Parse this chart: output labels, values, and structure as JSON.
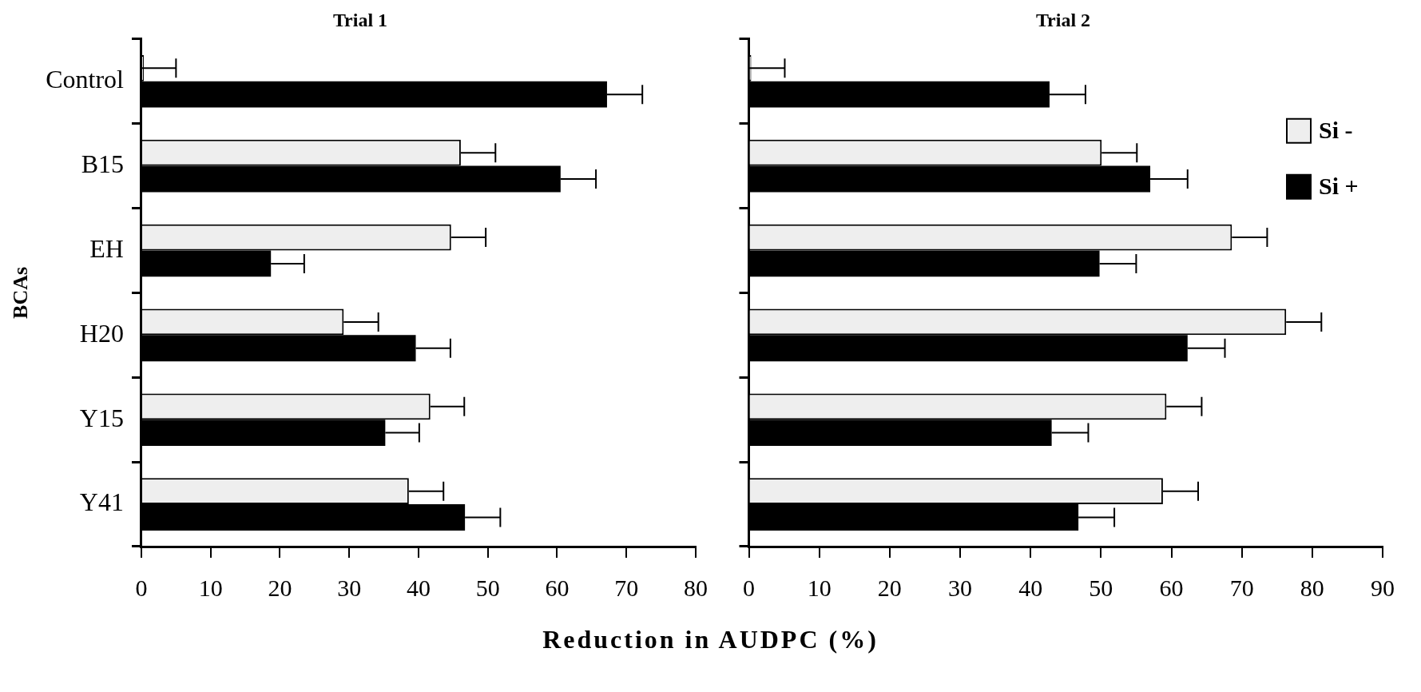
{
  "chart_data": [
    {
      "type": "bar",
      "orientation": "horizontal",
      "title": "Trial 1",
      "xlabel": "Reduction in AUDPC (%)",
      "ylabel": "BCAs",
      "categories": [
        "Control",
        "B15",
        "EH",
        "H20",
        "Y15",
        "Y41"
      ],
      "series": [
        {
          "color": "#eeeeee",
          "values": [
            0,
            46.1,
            44.7,
            29.2,
            41.7,
            38.6
          ],
          "errors": [
            [
              0,
              5
            ],
            [
              46.1,
              51.1
            ],
            [
              44.7,
              49.7
            ],
            [
              29.2,
              34.2
            ],
            [
              41.7,
              46.6
            ],
            [
              38.6,
              43.6
            ]
          ]
        },
        {
          "color": "#000000",
          "values": [
            67.2,
            60.5,
            18.7,
            39.6,
            35.2,
            46.7
          ],
          "errors": [
            [
              67.2,
              72.3
            ],
            [
              60.5,
              65.6
            ],
            [
              18.7,
              23.5
            ],
            [
              39.6,
              44.6
            ],
            [
              35.2,
              40.1
            ],
            [
              46.7,
              51.8
            ]
          ]
        }
      ],
      "xlim": [
        0,
        80
      ],
      "xticks": [
        0,
        10,
        20,
        30,
        40,
        50,
        60,
        70,
        80
      ],
      "grid": false,
      "legend": false
    },
    {
      "type": "bar",
      "orientation": "horizontal",
      "title": "Trial 2",
      "categories": [
        null,
        null,
        null,
        null,
        null,
        null
      ],
      "series": [
        {
          "name": "Si -",
          "color": "#eeeeee",
          "values": [
            0,
            50.1,
            68.6,
            76.3,
            59.3,
            58.8
          ],
          "errors": [
            [
              0,
              5.1
            ],
            [
              50.1,
              55.1
            ],
            [
              68.6,
              73.6
            ],
            [
              76.3,
              81.3
            ],
            [
              59.3,
              64.3
            ],
            [
              58.8,
              63.8
            ]
          ]
        },
        {
          "name": "Si +",
          "color": "#000000",
          "values": [
            42.7,
            57.0,
            49.8,
            62.3,
            43.0,
            46.8
          ],
          "errors": [
            [
              42.7,
              47.8
            ],
            [
              57.0,
              62.3
            ],
            [
              49.8,
              55.0
            ],
            [
              62.3,
              67.6
            ],
            [
              43.0,
              48.2
            ],
            [
              46.8,
              51.9
            ]
          ]
        }
      ],
      "xlim": [
        0,
        90
      ],
      "xticks": [
        0,
        10,
        20,
        30,
        40,
        50,
        60,
        70,
        80,
        90
      ],
      "grid": false,
      "legend": "top right",
      "tick_labels": "x"
    }
  ]
}
